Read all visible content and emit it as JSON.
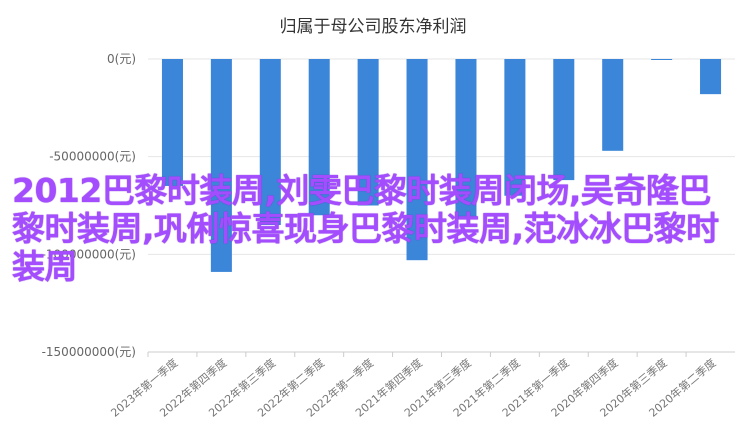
{
  "chart_data": {
    "type": "bar",
    "title": "归属于母公司股东净利润",
    "categories": [
      "2023年第一季度",
      "2022年第四季度",
      "2022年第三季度",
      "2022年第二季度",
      "2022年第一季度",
      "2021年第四季度",
      "2021年第三季度",
      "2021年第二季度",
      "2021年第一季度",
      "2020年第四季度",
      "2020年第三季度",
      "2020年第二季度"
    ],
    "values": [
      -65000000,
      -109000000,
      -85000000,
      -80000000,
      -75000000,
      -103000000,
      -82000000,
      -70000000,
      -62000000,
      -47000000,
      -300000,
      -18000000
    ],
    "yticks": [
      "0(元)",
      "-50000000(元)",
      "-100000000(元)",
      "-150000000(元)"
    ],
    "ylim": [
      -150000000,
      0
    ],
    "grid": true,
    "bar_color": "#3b86d8"
  },
  "overlay_text": "2012巴黎时装周,刘雯巴黎时装周闭场,吴奇隆巴黎时装周,巩俐惊喜现身巴黎时装周,范冰冰巴黎时装周"
}
